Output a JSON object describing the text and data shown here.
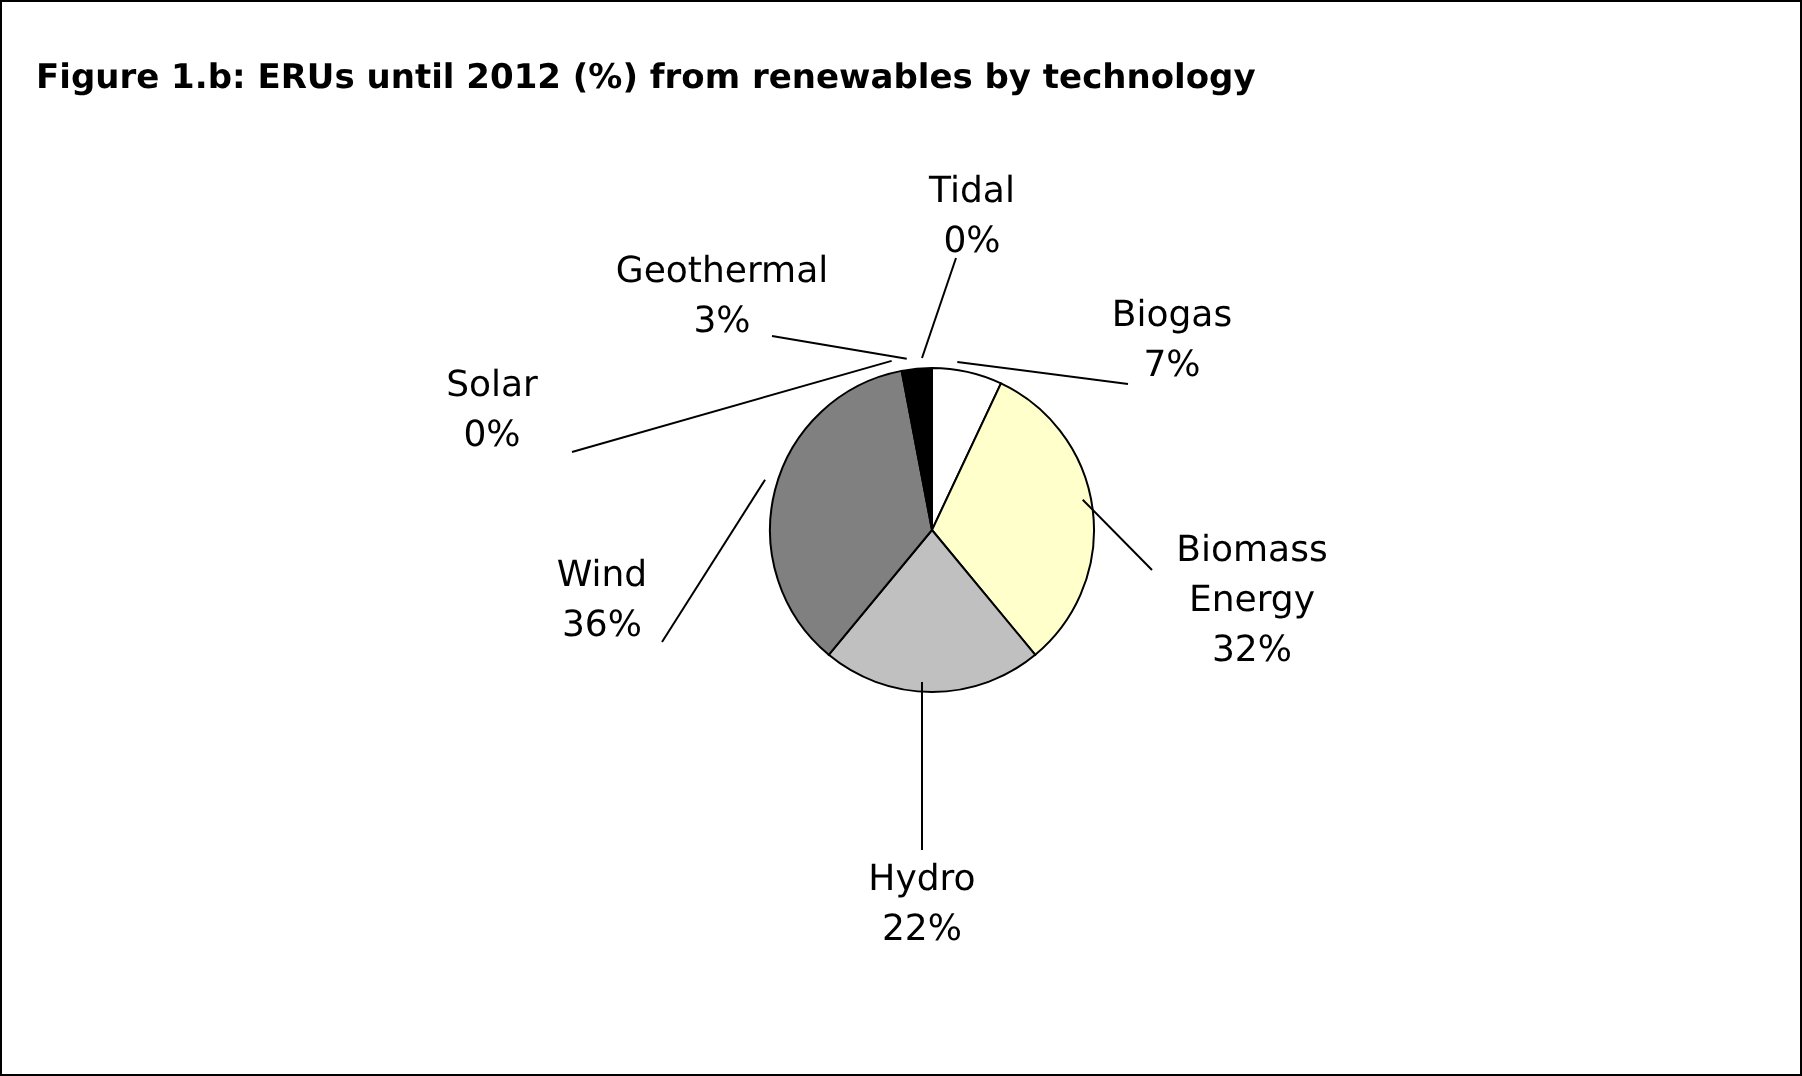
{
  "chart_data": {
    "type": "pie",
    "title": "Figure 1.b: ERUs until 2012 (%) from renewables by technology",
    "categories": [
      "Tidal",
      "Biogas",
      "Biomass Energy",
      "Hydro",
      "Wind",
      "Solar",
      "Geothermal"
    ],
    "values": [
      0,
      7,
      32,
      22,
      36,
      0,
      3
    ],
    "value_labels": [
      "0%",
      "7%",
      "32%",
      "22%",
      "36%",
      "0%",
      "3%"
    ],
    "colors": [
      "#ffffff",
      "#ffffff",
      "#ffffcc",
      "#c0c0c0",
      "#808080",
      "#ffffff",
      "#000000"
    ]
  }
}
